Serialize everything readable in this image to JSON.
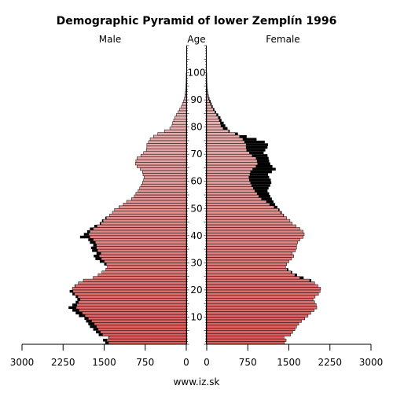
{
  "chart_data": {
    "type": "bar",
    "orientation": "horizontal-pyramid",
    "title": "Demographic Pyramid of lower Zemplín 1996",
    "left_header": "Male",
    "center_header": "Age",
    "right_header": "Female",
    "footer": "www.iz.sk",
    "x_ticks_left": [
      "3000",
      "2250",
      "1500",
      "750",
      "0"
    ],
    "x_ticks_right": [
      "0",
      "750",
      "1500",
      "2250",
      "3000"
    ],
    "age_tick_labels": [
      "10",
      "20",
      "30",
      "40",
      "50",
      "60",
      "70",
      "80",
      "90",
      "100"
    ],
    "xlim": [
      0,
      3000
    ],
    "age_range": [
      0,
      110
    ],
    "colors": {
      "excess": "#000000",
      "male_young": "#e05a5a",
      "male_old": "#e8b4b4",
      "female_young": "#e05a5a",
      "female_old": "#e8b4b4",
      "bar_outline": "#000000"
    },
    "series": [
      {
        "name": "Male",
        "values": [
          1480,
          1520,
          1420,
          1600,
          1650,
          1700,
          1760,
          1790,
          1830,
          1860,
          1960,
          2020,
          2080,
          2150,
          2080,
          2020,
          1990,
          2020,
          2080,
          2130,
          2080,
          2040,
          1970,
          1880,
          1700,
          1610,
          1540,
          1470,
          1440,
          1500,
          1580,
          1660,
          1690,
          1640,
          1720,
          1740,
          1700,
          1760,
          1790,
          1940,
          1870,
          1810,
          1760,
          1680,
          1580,
          1540,
          1480,
          1400,
          1350,
          1310,
          1230,
          1150,
          1090,
          1000,
          950,
          920,
          880,
          850,
          820,
          800,
          780,
          770,
          790,
          800,
          840,
          900,
          930,
          920,
          900,
          830,
          780,
          730,
          720,
          720,
          690,
          660,
          600,
          520,
          400,
          300,
          260,
          250,
          230,
          210,
          180,
          150,
          120,
          90,
          70,
          50,
          35,
          25,
          18,
          12,
          8,
          5,
          3,
          2,
          1,
          1,
          0
        ]
      },
      {
        "name": "Female",
        "values": [
          1420,
          1450,
          1410,
          1530,
          1570,
          1610,
          1640,
          1680,
          1730,
          1790,
          1850,
          1900,
          1960,
          2010,
          2000,
          1970,
          1940,
          1980,
          2040,
          2070,
          2080,
          2030,
          1970,
          1910,
          1770,
          1650,
          1560,
          1490,
          1440,
          1460,
          1500,
          1550,
          1590,
          1560,
          1620,
          1640,
          1640,
          1660,
          1700,
          1760,
          1780,
          1760,
          1700,
          1630,
          1560,
          1520,
          1460,
          1410,
          1370,
          1330,
          1290,
          1250,
          1220,
          1190,
          1160,
          1140,
          1110,
          1130,
          1160,
          1180,
          1170,
          1140,
          1120,
          1190,
          1260,
          1200,
          1160,
          1140,
          1130,
          1110,
          1040,
          1070,
          1110,
          1120,
          1060,
          910,
          730,
          570,
          420,
          380,
          340,
          310,
          270,
          250,
          210,
          170,
          140,
          110,
          90,
          70,
          50,
          35,
          25,
          18,
          12,
          8,
          5,
          3,
          2,
          1,
          0
        ]
      },
      {
        "name": "Female excess",
        "values": [
          0,
          0,
          0,
          0,
          0,
          0,
          0,
          0,
          0,
          0,
          0,
          0,
          0,
          0,
          0,
          0,
          0,
          0,
          0,
          0,
          0,
          0,
          0,
          0,
          0,
          0,
          0,
          0,
          0,
          0,
          0,
          0,
          0,
          0,
          0,
          0,
          0,
          0,
          0,
          0,
          0,
          0,
          0,
          0,
          0,
          0,
          0,
          0,
          0,
          0,
          0,
          0,
          0,
          0,
          0,
          0,
          0,
          0,
          0,
          0,
          0,
          0,
          0,
          0,
          0,
          0,
          0,
          0,
          0,
          0,
          0,
          0,
          0,
          0,
          0,
          0,
          0,
          0,
          0,
          0,
          0,
          0,
          0,
          0,
          0,
          0,
          0,
          0,
          0,
          0,
          0,
          0,
          0,
          0,
          0,
          0,
          0,
          0,
          0,
          0,
          0
        ]
      }
    ]
  }
}
